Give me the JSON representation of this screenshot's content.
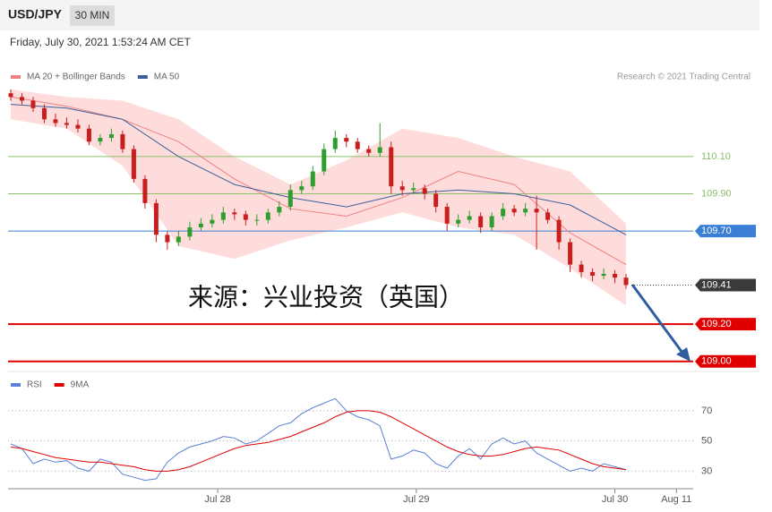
{
  "header": {
    "symbol": "USD/JPY",
    "timeframe": "30 MIN",
    "datetime": "Friday, July 30, 2021 1:53:24 AM CET"
  },
  "watermark": "来源：兴业投资（英国）",
  "chart_data": [
    {
      "type": "candlestick",
      "credit": "Research © 2021 Trading Central",
      "up_color": "#2e9e2e",
      "down_color": "#c81e1e",
      "open": [
        110.44,
        110.42,
        110.4,
        110.36,
        110.3,
        110.28,
        110.27,
        110.25,
        110.18,
        110.2,
        110.22,
        110.14,
        109.98,
        109.85,
        109.68,
        109.64,
        109.67,
        109.72,
        109.74,
        109.76,
        109.8,
        109.79,
        109.76,
        109.76,
        109.8,
        109.83,
        109.92,
        109.94,
        110.02,
        110.14,
        110.2,
        110.18,
        110.14,
        110.12,
        110.15,
        109.94,
        109.92,
        109.93,
        109.9,
        109.83,
        109.74,
        109.76,
        109.78,
        109.72,
        109.78,
        109.82,
        109.8,
        109.82,
        109.8,
        109.76,
        109.64,
        109.52,
        109.48,
        109.46,
        109.47,
        109.45
      ],
      "high": [
        110.46,
        110.44,
        110.42,
        110.38,
        110.33,
        110.31,
        110.3,
        110.27,
        110.22,
        110.25,
        110.24,
        110.16,
        110.0,
        109.87,
        109.7,
        109.7,
        109.75,
        109.77,
        109.79,
        109.83,
        109.82,
        109.81,
        109.79,
        109.82,
        109.86,
        109.95,
        109.97,
        110.05,
        110.17,
        110.24,
        110.22,
        110.2,
        110.16,
        110.28,
        110.18,
        109.97,
        109.96,
        109.95,
        109.92,
        109.85,
        109.79,
        109.81,
        109.8,
        109.8,
        109.85,
        109.84,
        109.85,
        109.89,
        109.82,
        109.78,
        109.66,
        109.54,
        109.5,
        109.5,
        109.49,
        109.47
      ],
      "low": [
        110.4,
        110.38,
        110.34,
        110.28,
        110.26,
        110.25,
        110.23,
        110.16,
        110.16,
        110.18,
        110.12,
        109.96,
        109.82,
        109.64,
        109.6,
        109.62,
        109.65,
        109.7,
        109.72,
        109.74,
        109.76,
        109.73,
        109.73,
        109.74,
        109.78,
        109.81,
        109.9,
        109.92,
        110.0,
        110.12,
        110.15,
        110.12,
        110.1,
        110.1,
        109.9,
        109.89,
        109.9,
        109.87,
        109.8,
        109.7,
        109.72,
        109.74,
        109.69,
        109.7,
        109.76,
        109.78,
        109.78,
        109.6,
        109.74,
        109.6,
        109.48,
        109.45,
        109.43,
        109.44,
        109.42,
        109.39
      ],
      "close": [
        110.42,
        110.4,
        110.36,
        110.3,
        110.28,
        110.27,
        110.25,
        110.18,
        110.2,
        110.22,
        110.14,
        109.98,
        109.85,
        109.68,
        109.64,
        109.67,
        109.72,
        109.74,
        109.76,
        109.8,
        109.79,
        109.76,
        109.76,
        109.8,
        109.83,
        109.92,
        109.94,
        110.02,
        110.14,
        110.2,
        110.18,
        110.14,
        110.12,
        110.15,
        109.94,
        109.92,
        109.93,
        109.9,
        109.83,
        109.74,
        109.76,
        109.78,
        109.72,
        109.78,
        109.82,
        109.8,
        109.82,
        109.8,
        109.76,
        109.64,
        109.52,
        109.48,
        109.46,
        109.47,
        109.45,
        109.41
      ],
      "overlay_x": [
        0,
        5,
        10,
        15,
        20,
        25,
        30,
        35,
        40,
        45,
        50,
        55
      ],
      "series": [
        {
          "name": "MA 20 + Bollinger Bands",
          "color": "#f08080",
          "values": [
            110.42,
            110.37,
            110.3,
            110.18,
            109.98,
            109.82,
            109.78,
            109.88,
            110.02,
            109.95,
            109.69,
            109.52
          ]
        },
        {
          "name": "MA 50",
          "color": "#3a5f9a",
          "values": [
            110.38,
            110.36,
            110.3,
            110.1,
            109.95,
            109.88,
            109.83,
            109.9,
            109.92,
            109.9,
            109.84,
            109.68
          ]
        }
      ],
      "bb_upper": [
        110.46,
        110.42,
        110.4,
        110.3,
        110.1,
        109.95,
        110.08,
        110.25,
        110.2,
        110.1,
        110.02,
        109.74
      ],
      "bb_lower": [
        110.3,
        110.25,
        110.05,
        109.62,
        109.55,
        109.65,
        109.72,
        109.8,
        109.72,
        109.68,
        109.5,
        109.3
      ],
      "band_color": "#ffdcdc",
      "levels": [
        {
          "value": 110.1,
          "label": "110.10",
          "color": "#8cc06a",
          "style": "thin"
        },
        {
          "value": 109.9,
          "label": "109.90",
          "color": "#8cc06a",
          "style": "thin"
        },
        {
          "value": 109.7,
          "label": "109.70",
          "color": "#3a7fd5",
          "style": "badge"
        },
        {
          "value": 109.41,
          "label": "109.41",
          "color": "#3a3a3a",
          "style": "current"
        },
        {
          "value": 109.2,
          "label": "109.20",
          "color": "#e00000",
          "style": "thick"
        },
        {
          "value": 109.0,
          "label": "109.00",
          "color": "#e00000",
          "style": "thick"
        }
      ],
      "xlim": [
        0,
        61
      ],
      "ylim": [
        108.97,
        110.46
      ]
    },
    {
      "type": "line",
      "series": [
        {
          "name": "RSI",
          "color": "#5b7fd6",
          "values": [
            48,
            45,
            35,
            38,
            36,
            37,
            32,
            30,
            38,
            36,
            28,
            26,
            24,
            25,
            36,
            42,
            46,
            48,
            50,
            53,
            52,
            48,
            50,
            55,
            60,
            62,
            68,
            72,
            75,
            78,
            70,
            66,
            64,
            60,
            38,
            40,
            44,
            42,
            35,
            32,
            40,
            45,
            38,
            48,
            52,
            48,
            50,
            42,
            38,
            34,
            30,
            32,
            30,
            35,
            33,
            31
          ]
        },
        {
          "name": "9MA",
          "color": "#e00000",
          "values": [
            46,
            45,
            43,
            41,
            39,
            38,
            37,
            36,
            36,
            35,
            34,
            33,
            31,
            30,
            30,
            31,
            33,
            36,
            39,
            42,
            45,
            47,
            48,
            49,
            51,
            53,
            56,
            59,
            62,
            66,
            69,
            70,
            70,
            69,
            66,
            62,
            58,
            54,
            50,
            46,
            43,
            41,
            40,
            40,
            41,
            43,
            45,
            46,
            45,
            44,
            41,
            38,
            35,
            33,
            32,
            31
          ]
        }
      ],
      "xlim": [
        0,
        61
      ],
      "xticks": [
        {
          "value": 18.5,
          "label": "Jul 28"
        },
        {
          "value": 36.25,
          "label": "Jul 29"
        },
        {
          "value": 54,
          "label": "Jul 30"
        },
        {
          "value": 59.5,
          "label": "Aug 11"
        }
      ],
      "ylim": [
        19,
        93
      ],
      "yticks": [
        30,
        50,
        70
      ],
      "grid": true
    }
  ]
}
